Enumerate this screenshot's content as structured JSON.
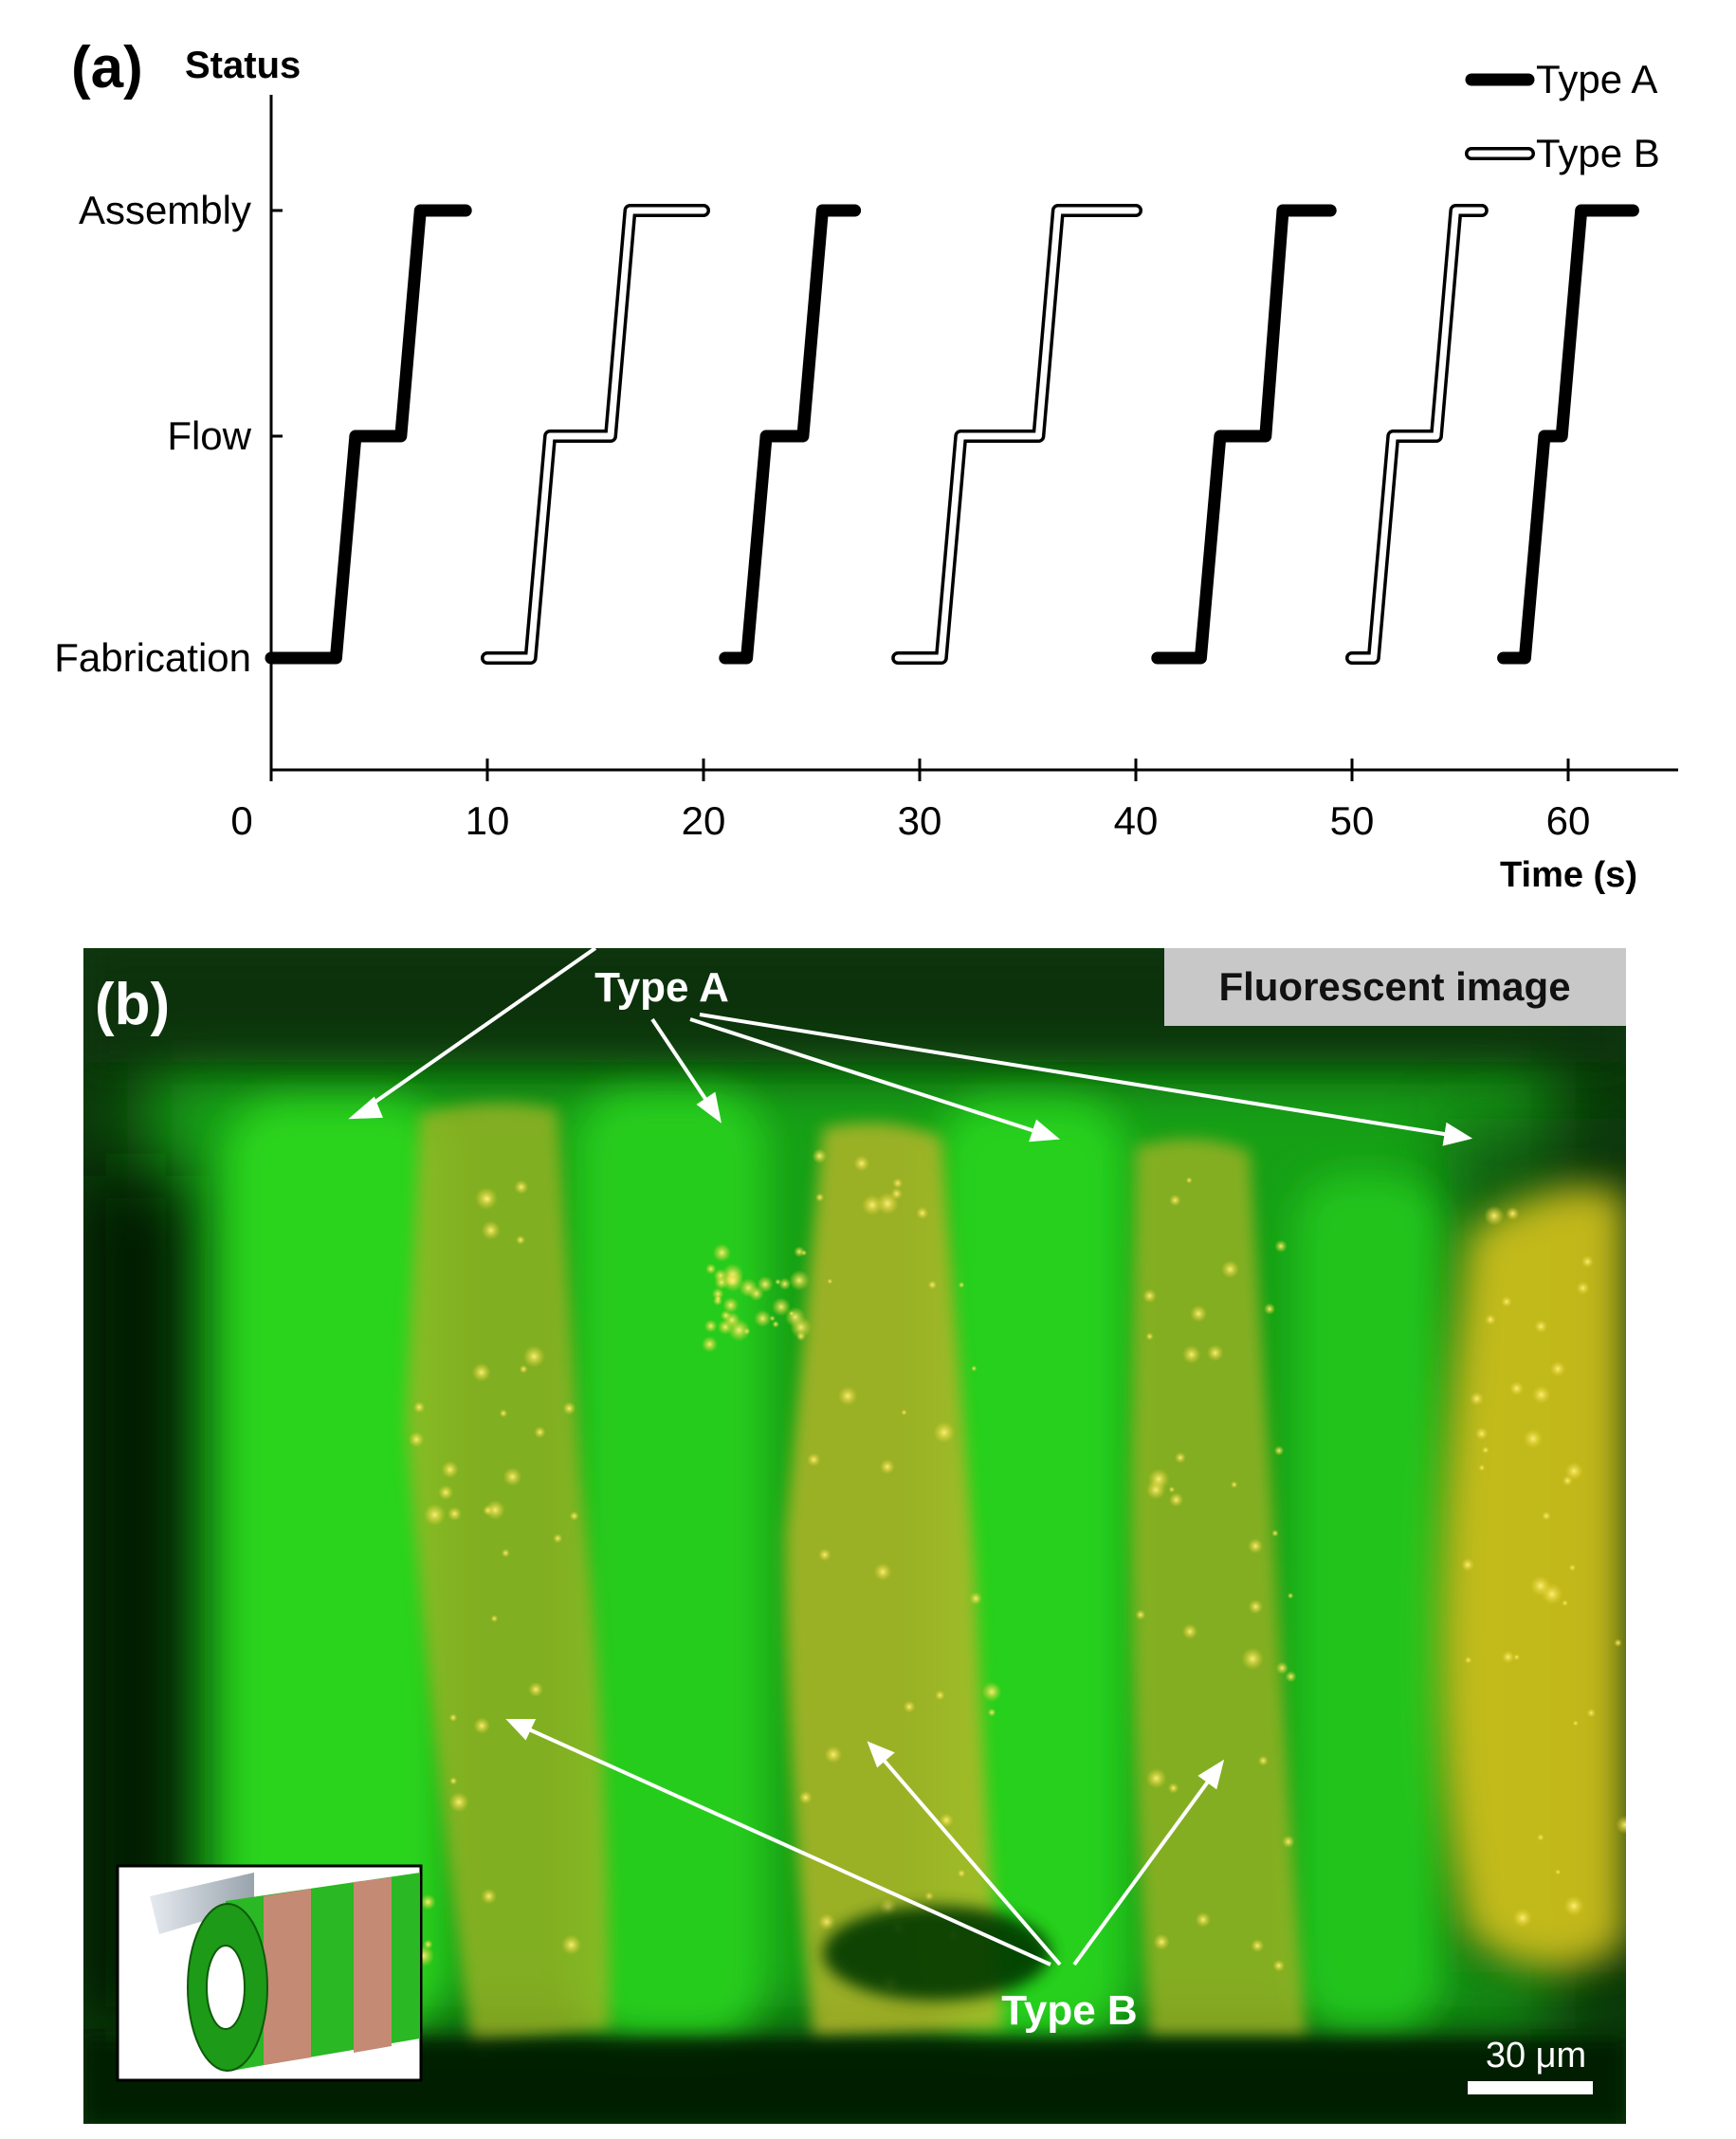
{
  "panel_a": {
    "label": "(a)",
    "chart_data": {
      "type": "line",
      "title": "",
      "ylabel": "Status",
      "xlabel": "Time (s)",
      "xlim": [
        0,
        65
      ],
      "x_ticks": [
        0,
        10,
        20,
        30,
        40,
        50,
        60
      ],
      "y_categories": [
        "Fabrication",
        "Flow",
        "Assembly"
      ],
      "grid": false,
      "legend_position": "top-right",
      "legend": [
        {
          "name": "Type A",
          "style": "solid-black"
        },
        {
          "name": "Type B",
          "style": "hollow-outline"
        }
      ],
      "series": [
        {
          "name": "Type A",
          "points": [
            [
              0,
              0
            ],
            [
              3,
              0
            ],
            [
              3.9,
              1
            ],
            [
              6,
              1
            ],
            [
              6.9,
              2
            ],
            [
              9,
              2
            ]
          ]
        },
        {
          "name": "Type B",
          "points": [
            [
              10,
              0
            ],
            [
              12,
              0
            ],
            [
              12.9,
              1
            ],
            [
              15.7,
              1
            ],
            [
              16.6,
              2
            ],
            [
              20,
              2
            ]
          ]
        },
        {
          "name": "Type A",
          "points": [
            [
              21,
              0
            ],
            [
              22,
              0
            ],
            [
              22.9,
              1
            ],
            [
              24.6,
              1
            ],
            [
              25.5,
              2
            ],
            [
              27,
              2
            ]
          ]
        },
        {
          "name": "Type B",
          "points": [
            [
              29,
              0
            ],
            [
              31,
              0
            ],
            [
              31.9,
              1
            ],
            [
              35.5,
              1
            ],
            [
              36.4,
              2
            ],
            [
              40,
              2
            ]
          ]
        },
        {
          "name": "Type A",
          "points": [
            [
              41,
              0
            ],
            [
              43,
              0
            ],
            [
              43.9,
              1
            ],
            [
              46,
              1
            ],
            [
              46.8,
              2
            ],
            [
              49,
              2
            ]
          ]
        },
        {
          "name": "Type B",
          "points": [
            [
              50,
              0
            ],
            [
              51,
              0
            ],
            [
              51.9,
              1
            ],
            [
              53.9,
              1
            ],
            [
              54.8,
              2
            ],
            [
              56,
              2
            ]
          ]
        },
        {
          "name": "Type A",
          "points": [
            [
              57,
              0
            ],
            [
              58,
              0
            ],
            [
              58.9,
              1
            ],
            [
              59.7,
              1
            ],
            [
              60.6,
              2
            ],
            [
              63,
              2
            ]
          ]
        }
      ]
    }
  },
  "panel_b": {
    "label": "(b)",
    "caption_box": "Fluorescent image",
    "type_a_label": "Type A",
    "type_b_label": "Type B",
    "scale_bar_label": "30 μm",
    "colors": {
      "green": "#1fbf18",
      "yellow": "#e2d21c",
      "dark": "#062a06"
    }
  }
}
